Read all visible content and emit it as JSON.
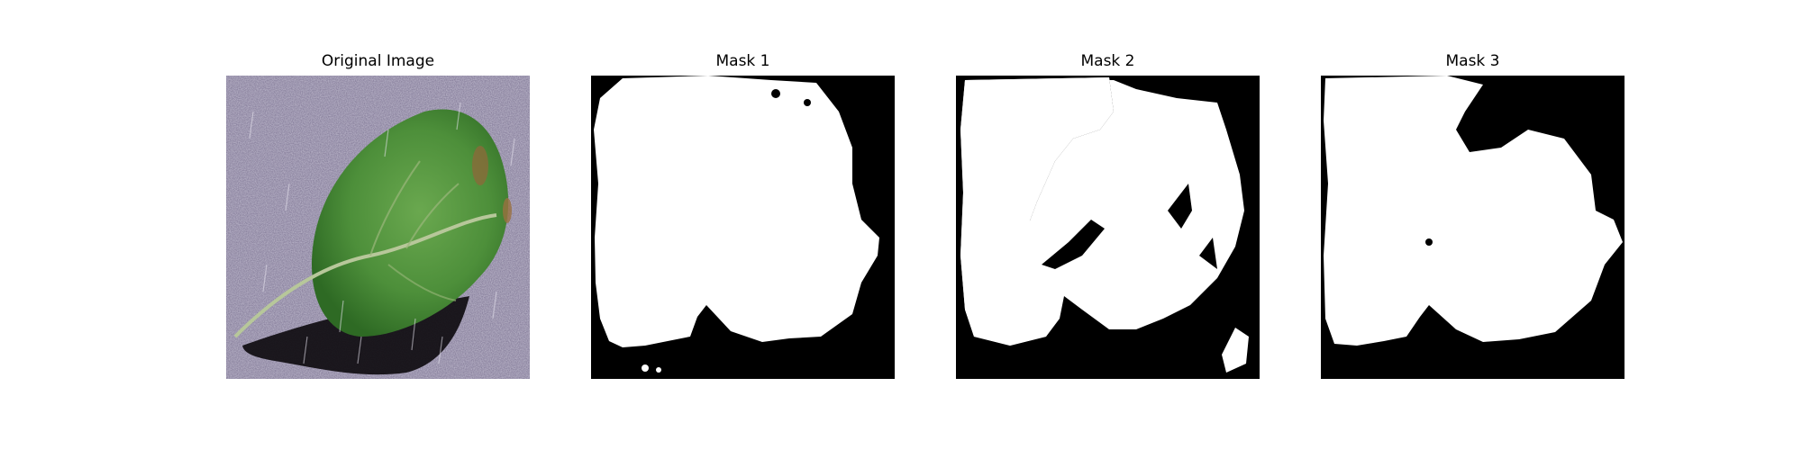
{
  "panels": [
    {
      "title": "Original Image",
      "subject": "leaf-photo"
    },
    {
      "title": "Mask 1",
      "subject": "segmentation-mask"
    },
    {
      "title": "Mask 2",
      "subject": "segmentation-mask"
    },
    {
      "title": "Mask 3",
      "subject": "segmentation-mask"
    }
  ],
  "colors": {
    "background_texture": "#8e86a3",
    "leaf_green": "#4d8f3a",
    "leaf_dark": "#2e6a24",
    "shadow": "#0f0c10",
    "mask_foreground": "#ffffff",
    "mask_background": "#000000"
  }
}
